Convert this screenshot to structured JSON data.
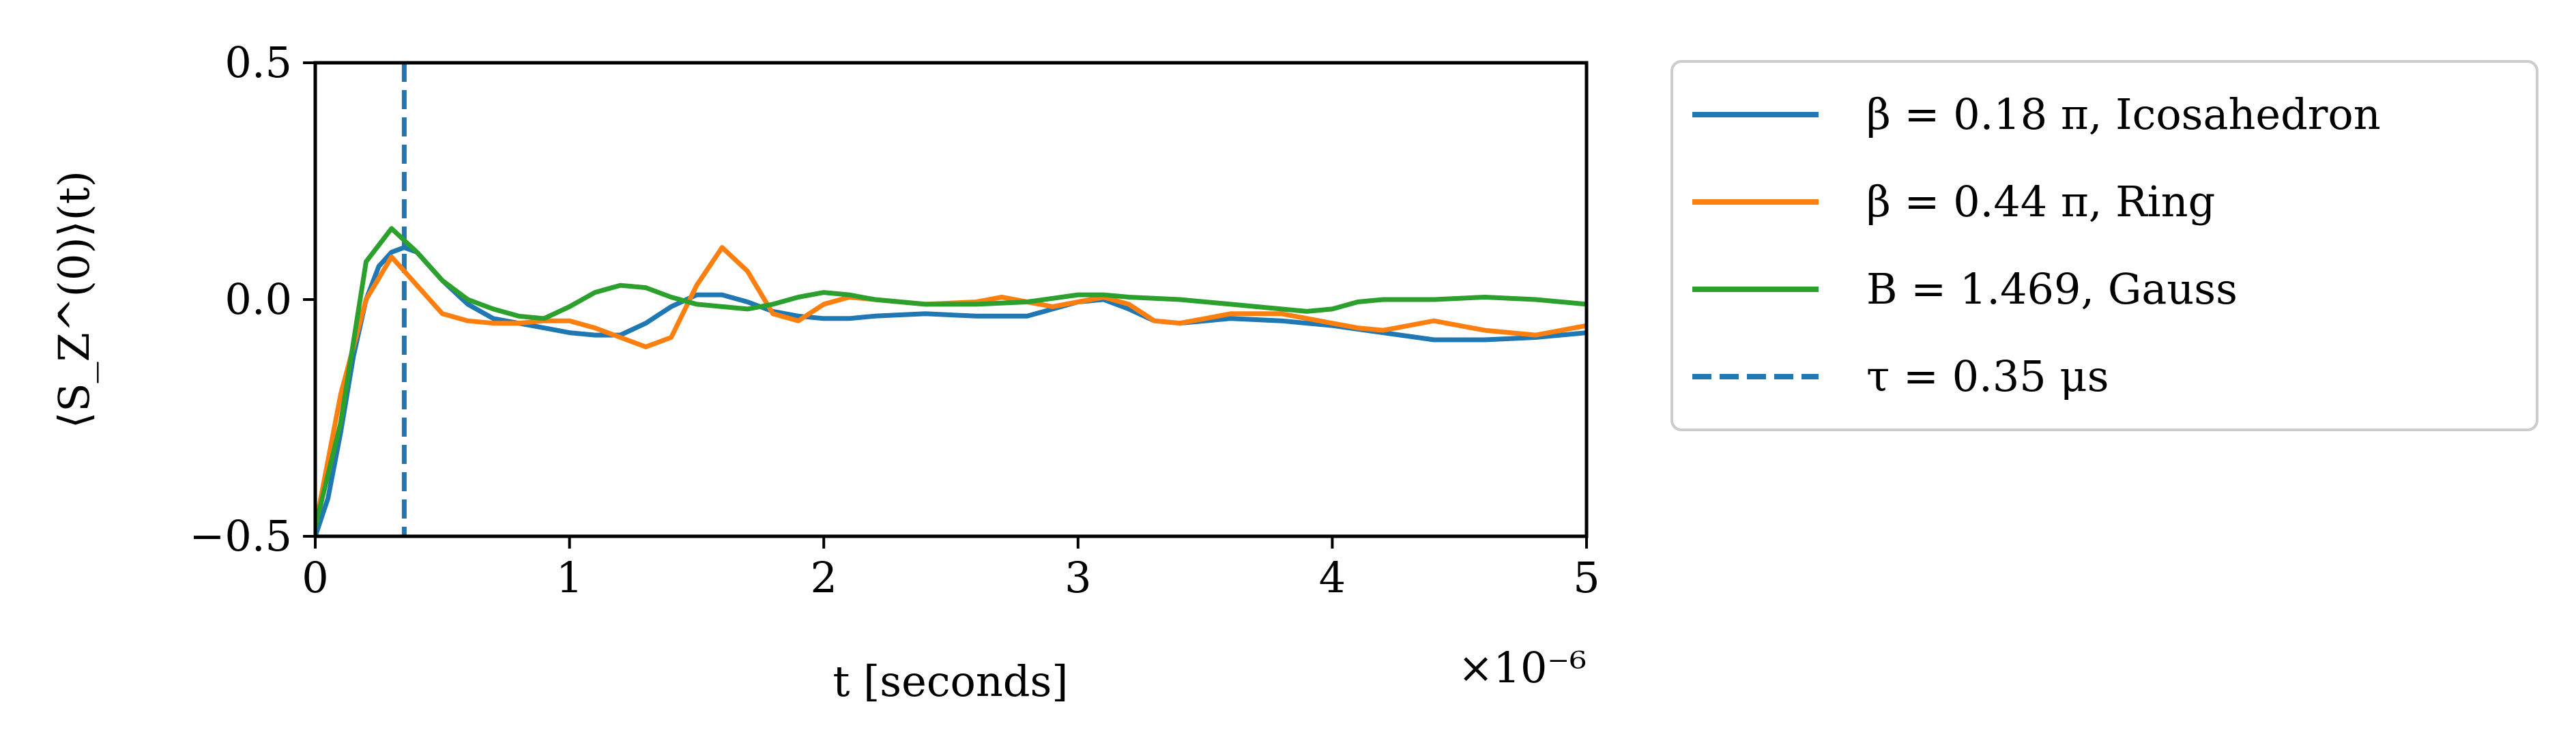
{
  "chart_data": {
    "type": "line",
    "title": "",
    "xlabel": "t [seconds]",
    "ylabel": "⟨S_Z^(0)⟩(t)",
    "x_scale_note": "×10⁻⁶",
    "xlim": [
      0,
      5
    ],
    "ylim": [
      -0.5,
      0.5
    ],
    "x_ticks": [
      0,
      1,
      2,
      3,
      4,
      5
    ],
    "x_tick_labels": [
      "0",
      "1",
      "2",
      "3",
      "4",
      "5"
    ],
    "y_ticks": [
      -0.5,
      0.0,
      0.5
    ],
    "y_tick_labels": [
      "−0.5",
      "0.0",
      "0.5"
    ],
    "grid": false,
    "legend_position": "outside-right",
    "series": [
      {
        "name": "β = 0.18 π, Icosahedron",
        "color": "#1f77b4",
        "style": "solid",
        "x": [
          0,
          0.05,
          0.1,
          0.15,
          0.2,
          0.25,
          0.3,
          0.35,
          0.4,
          0.5,
          0.6,
          0.7,
          0.8,
          0.9,
          1.0,
          1.1,
          1.2,
          1.3,
          1.4,
          1.5,
          1.6,
          1.7,
          1.8,
          1.9,
          2.0,
          2.1,
          2.2,
          2.4,
          2.6,
          2.8,
          2.9,
          3.0,
          3.1,
          3.2,
          3.3,
          3.4,
          3.6,
          3.8,
          4.0,
          4.2,
          4.4,
          4.6,
          4.8,
          5.0
        ],
        "y": [
          -0.5,
          -0.42,
          -0.28,
          -0.12,
          0.0,
          0.07,
          0.1,
          0.11,
          0.1,
          0.04,
          -0.01,
          -0.04,
          -0.05,
          -0.06,
          -0.07,
          -0.075,
          -0.075,
          -0.05,
          -0.015,
          0.01,
          0.01,
          -0.005,
          -0.025,
          -0.035,
          -0.04,
          -0.04,
          -0.035,
          -0.03,
          -0.035,
          -0.035,
          -0.02,
          -0.005,
          0.0,
          -0.02,
          -0.045,
          -0.05,
          -0.04,
          -0.045,
          -0.055,
          -0.07,
          -0.085,
          -0.085,
          -0.08,
          -0.07
        ]
      },
      {
        "name": "β = 0.44 π, Ring",
        "color": "#ff7f0e",
        "style": "solid",
        "x": [
          0,
          0.1,
          0.2,
          0.3,
          0.4,
          0.5,
          0.6,
          0.7,
          0.8,
          0.9,
          1.0,
          1.1,
          1.2,
          1.3,
          1.4,
          1.5,
          1.6,
          1.7,
          1.8,
          1.9,
          2.0,
          2.1,
          2.2,
          2.4,
          2.6,
          2.7,
          2.8,
          2.9,
          3.0,
          3.1,
          3.2,
          3.3,
          3.4,
          3.5,
          3.6,
          3.8,
          4.0,
          4.1,
          4.2,
          4.3,
          4.4,
          4.5,
          4.6,
          4.8,
          5.0
        ],
        "y": [
          -0.48,
          -0.2,
          0.0,
          0.09,
          0.03,
          -0.03,
          -0.045,
          -0.05,
          -0.05,
          -0.045,
          -0.045,
          -0.06,
          -0.08,
          -0.1,
          -0.08,
          0.03,
          0.11,
          0.06,
          -0.03,
          -0.045,
          -0.01,
          0.005,
          0.0,
          -0.01,
          -0.005,
          0.005,
          -0.005,
          -0.015,
          -0.005,
          0.005,
          -0.01,
          -0.045,
          -0.05,
          -0.04,
          -0.03,
          -0.03,
          -0.05,
          -0.06,
          -0.065,
          -0.055,
          -0.045,
          -0.055,
          -0.065,
          -0.075,
          -0.055
        ]
      },
      {
        "name": "B = 1.469, Gauss",
        "color": "#2ca02c",
        "style": "solid",
        "x": [
          0,
          0.1,
          0.2,
          0.3,
          0.4,
          0.5,
          0.6,
          0.7,
          0.8,
          0.9,
          1.0,
          1.1,
          1.2,
          1.3,
          1.4,
          1.5,
          1.6,
          1.7,
          1.8,
          1.9,
          2.0,
          2.1,
          2.2,
          2.4,
          2.6,
          2.8,
          3.0,
          3.1,
          3.2,
          3.4,
          3.6,
          3.8,
          3.9,
          4.0,
          4.1,
          4.2,
          4.4,
          4.6,
          4.8,
          5.0
        ],
        "y": [
          -0.48,
          -0.26,
          0.08,
          0.15,
          0.1,
          0.04,
          0.0,
          -0.02,
          -0.035,
          -0.04,
          -0.015,
          0.015,
          0.03,
          0.025,
          0.005,
          -0.01,
          -0.015,
          -0.02,
          -0.01,
          0.005,
          0.015,
          0.01,
          0.0,
          -0.01,
          -0.01,
          -0.005,
          0.01,
          0.01,
          0.005,
          0.0,
          -0.01,
          -0.02,
          -0.025,
          -0.02,
          -0.005,
          0.0,
          0.0,
          0.005,
          0.0,
          -0.01
        ]
      }
    ],
    "vlines": [
      {
        "name": "τ = 0.35 μs",
        "x": 0.35,
        "color": "#1f77b4",
        "style": "dashed"
      }
    ]
  }
}
